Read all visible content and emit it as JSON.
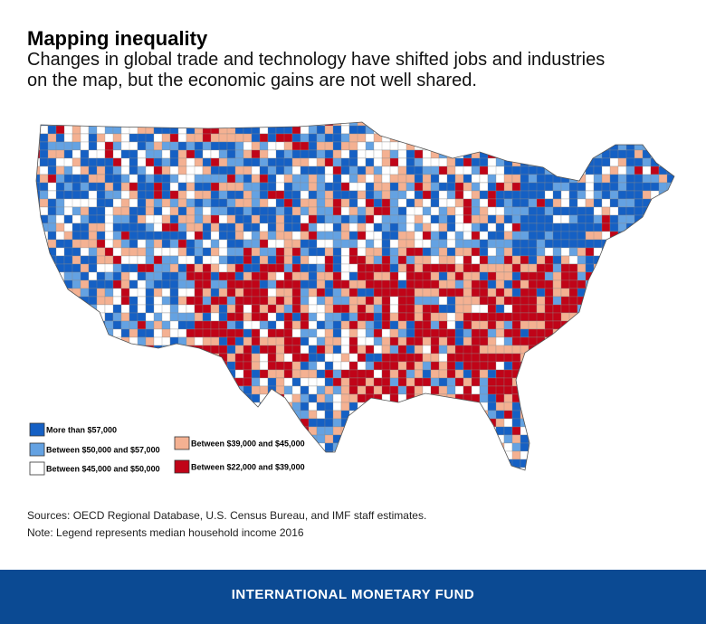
{
  "header": {
    "title": "Mapping inequality",
    "subtitle_lines": [
      "Changes in global trade and technology have shifted jobs and industries",
      "on the map, but the economic gains are not well shared."
    ]
  },
  "legend": [
    {
      "label": "More than $57,000",
      "color": "#1560c4"
    },
    {
      "label": "Between $50,000 and $57,000",
      "color": "#64a2e2"
    },
    {
      "label": "Between $45,000 and $50,000",
      "color": "#ffffff"
    },
    {
      "label": "Between $39,000 and $45,000",
      "color": "#f4b192"
    },
    {
      "label": "Between $22,000 and $39,000",
      "color": "#c00418"
    }
  ],
  "notes": {
    "sources": "Sources: OECD Regional Database, U.S. Census Bureau, and IMF staff estimates.",
    "note": "Note: Legend represents median household income 2016"
  },
  "footer": {
    "text": "INTERNATIONAL MONETARY FUND"
  }
}
